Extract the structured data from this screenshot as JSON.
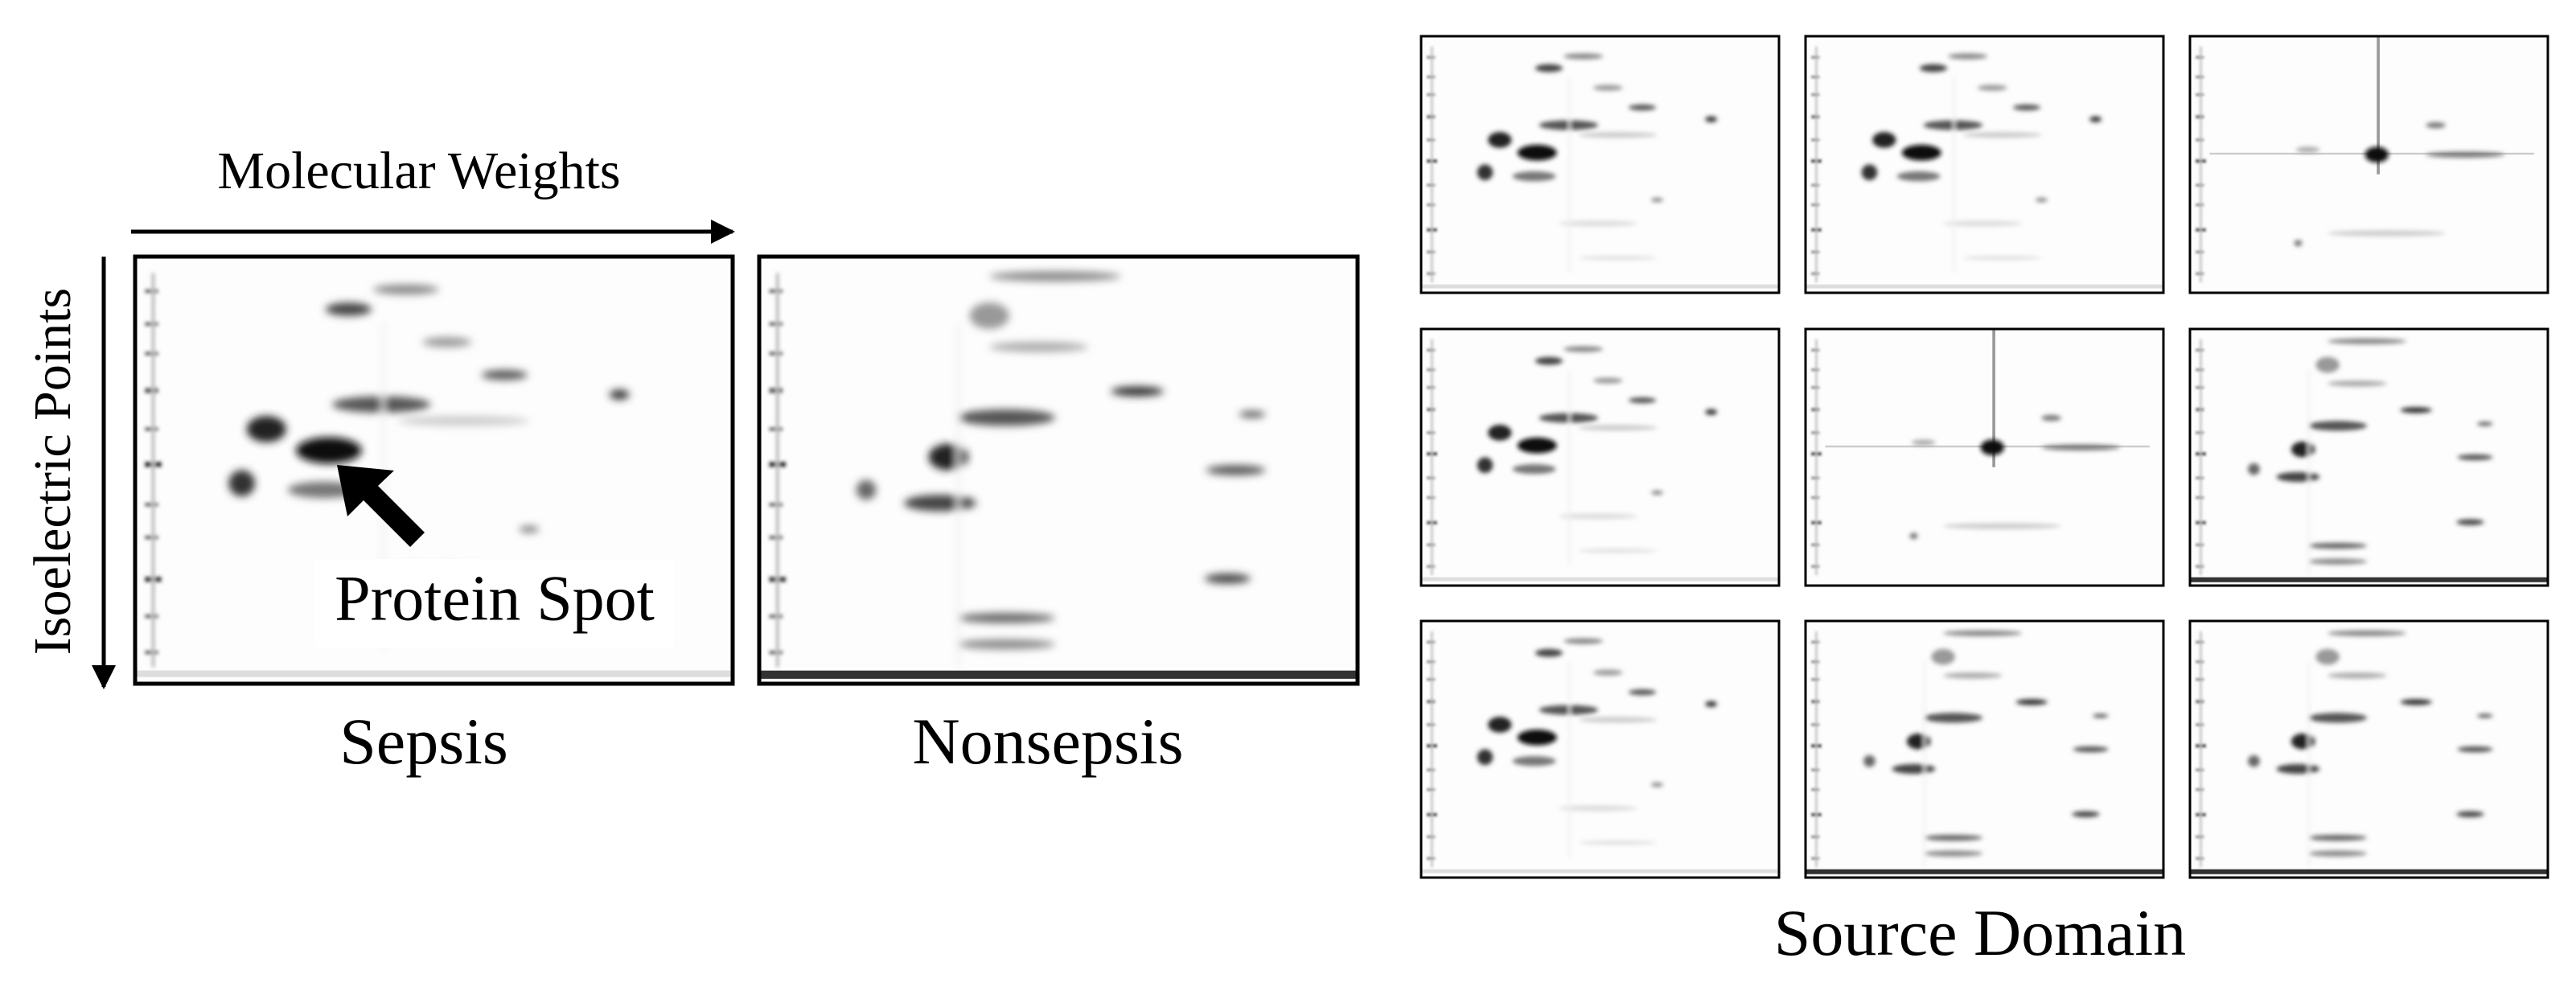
{
  "axes": {
    "x_label": "Molecular Weights",
    "y_label": "Isoelectric Points"
  },
  "annotation": "Protein Spot",
  "panels": [
    {
      "label": "Sepsis"
    },
    {
      "label": "Nonsepsis"
    }
  ],
  "source_domain": {
    "label": "Source Domain"
  }
}
